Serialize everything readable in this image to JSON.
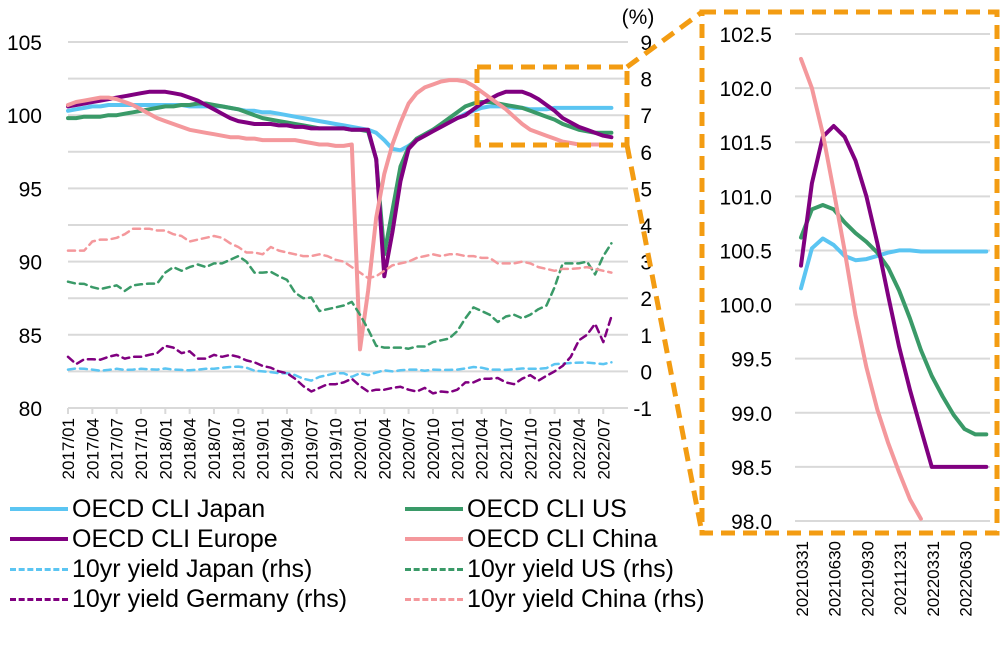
{
  "chart_data": [
    {
      "type": "line",
      "title": "",
      "xlabel": "",
      "ylabel": "",
      "ylabel_right": "(%)",
      "ylim": [
        80,
        105
      ],
      "ylim_right": [
        -1,
        9
      ],
      "grid": true,
      "yticks": [
        "80",
        "85",
        "90",
        "95",
        "100",
        "105"
      ],
      "yticks_right": [
        "-1",
        "0",
        "1",
        "2",
        "3",
        "4",
        "5",
        "6",
        "7",
        "8",
        "9"
      ],
      "x_start": "2017/01",
      "x_end": "2022/08",
      "x_step_months": 1,
      "xticks": [
        "2017/01",
        "2017/04",
        "2017/07",
        "2017/10",
        "2018/01",
        "2018/04",
        "2018/07",
        "2018/10",
        "2019/01",
        "2019/04",
        "2019/07",
        "2019/10",
        "2020/01",
        "2020/04",
        "2020/07",
        "2020/10",
        "2021/01",
        "2021/04",
        "2021/07",
        "2021/10",
        "2022/01",
        "2022/04",
        "2022/07"
      ],
      "series": [
        {
          "name": "OECD CLI Japan",
          "axis": "left",
          "style": "solid",
          "color": "#5BC5F2",
          "values": [
            100.3,
            100.4,
            100.5,
            100.6,
            100.6,
            100.7,
            100.7,
            100.7,
            100.7,
            100.7,
            100.7,
            100.7,
            100.7,
            100.7,
            100.7,
            100.6,
            100.6,
            100.6,
            100.6,
            100.6,
            100.5,
            100.4,
            100.3,
            100.3,
            100.2,
            100.2,
            100.1,
            100.0,
            99.9,
            99.8,
            99.7,
            99.6,
            99.5,
            99.4,
            99.3,
            99.2,
            99.1,
            99.0,
            98.8,
            98.3,
            97.7,
            97.6,
            97.9,
            98.3,
            98.7,
            99.0,
            99.3,
            99.5,
            99.8,
            100.1,
            100.3,
            100.5,
            100.6,
            100.6,
            100.6,
            100.5,
            100.5,
            100.4,
            100.4,
            100.4,
            100.5,
            100.5,
            100.5,
            100.5,
            100.5,
            100.5,
            100.5,
            100.5
          ]
        },
        {
          "name": "OECD CLI US",
          "axis": "left",
          "style": "solid",
          "color": "#3A9A68",
          "values": [
            99.8,
            99.8,
            99.9,
            99.9,
            99.9,
            100.0,
            100.0,
            100.1,
            100.2,
            100.3,
            100.4,
            100.5,
            100.6,
            100.6,
            100.7,
            100.7,
            100.8,
            100.8,
            100.7,
            100.6,
            100.5,
            100.4,
            100.2,
            100.0,
            99.8,
            99.7,
            99.6,
            99.5,
            99.4,
            99.3,
            99.2,
            99.1,
            99.1,
            99.1,
            99.1,
            99.0,
            99.0,
            98.9,
            97.0,
            90.5,
            93.5,
            96.5,
            97.8,
            98.4,
            98.7,
            99.0,
            99.4,
            99.8,
            100.2,
            100.6,
            100.8,
            100.9,
            100.9,
            100.8,
            100.7,
            100.6,
            100.5,
            100.3,
            100.1,
            99.9,
            99.7,
            99.4,
            99.2,
            99.0,
            98.9,
            98.8,
            98.8,
            98.8
          ]
        },
        {
          "name": "OECD CLI Europe",
          "axis": "left",
          "style": "solid",
          "color": "#800080",
          "values": [
            100.6,
            100.7,
            100.8,
            100.9,
            101.0,
            101.1,
            101.2,
            101.3,
            101.4,
            101.5,
            101.6,
            101.6,
            101.6,
            101.5,
            101.4,
            101.2,
            101.0,
            100.7,
            100.4,
            100.1,
            99.8,
            99.6,
            99.5,
            99.4,
            99.4,
            99.4,
            99.3,
            99.3,
            99.2,
            99.2,
            99.1,
            99.1,
            99.1,
            99.1,
            99.1,
            99.0,
            99.0,
            99.0,
            97.0,
            89.0,
            92.0,
            95.5,
            97.7,
            98.3,
            98.6,
            98.9,
            99.2,
            99.5,
            99.8,
            100.0,
            100.4,
            100.8,
            101.1,
            101.4,
            101.6,
            101.6,
            101.6,
            101.4,
            101.1,
            100.7,
            100.3,
            99.8,
            99.5,
            99.2,
            99.0,
            98.8,
            98.6,
            98.5
          ]
        },
        {
          "name": "OECD CLI China",
          "axis": "left",
          "style": "solid",
          "color": "#F4989C",
          "values": [
            100.7,
            100.9,
            101.0,
            101.1,
            101.2,
            101.2,
            101.1,
            100.9,
            100.7,
            100.4,
            100.1,
            99.8,
            99.6,
            99.4,
            99.2,
            99.0,
            98.9,
            98.8,
            98.7,
            98.6,
            98.5,
            98.5,
            98.4,
            98.4,
            98.3,
            98.3,
            98.3,
            98.3,
            98.3,
            98.2,
            98.1,
            98.0,
            98.0,
            97.9,
            97.9,
            98.0,
            84.0,
            88.0,
            93.0,
            96.0,
            98.0,
            99.5,
            100.8,
            101.5,
            101.9,
            102.1,
            102.3,
            102.4,
            102.4,
            102.3,
            102.0,
            101.6,
            101.2,
            100.8,
            100.4,
            99.9,
            99.4,
            99.0,
            98.8,
            98.6,
            98.4,
            98.2,
            98.1,
            98.0,
            98.0,
            98.0,
            98.0,
            98.0
          ]
        },
        {
          "name": "10yr yield Japan (rhs)",
          "axis": "right",
          "style": "dashed",
          "color": "#5BC5F2",
          "values": [
            0.05,
            0.08,
            0.07,
            0.05,
            0.02,
            0.04,
            0.07,
            0.04,
            0.05,
            0.07,
            0.06,
            0.05,
            0.08,
            0.05,
            0.04,
            0.03,
            0.05,
            0.07,
            0.07,
            0.1,
            0.12,
            0.13,
            0.1,
            0.02,
            0.0,
            -0.02,
            -0.05,
            -0.05,
            -0.1,
            -0.2,
            -0.25,
            -0.15,
            -0.1,
            -0.05,
            -0.05,
            -0.15,
            -0.05,
            -0.1,
            -0.03,
            0.03,
            0.0,
            0.03,
            0.05,
            0.05,
            0.02,
            0.05,
            0.04,
            0.04,
            0.05,
            0.08,
            0.12,
            0.1,
            0.05,
            0.05,
            0.04,
            0.06,
            0.08,
            0.07,
            0.07,
            0.09,
            0.2,
            0.21,
            0.23,
            0.24,
            0.24,
            0.22,
            0.2,
            0.25
          ]
        },
        {
          "name": "10yr yield US (rhs)",
          "axis": "right",
          "style": "dashed",
          "color": "#3A9A68",
          "values": [
            2.45,
            2.4,
            2.39,
            2.3,
            2.25,
            2.3,
            2.35,
            2.2,
            2.35,
            2.38,
            2.4,
            2.4,
            2.7,
            2.85,
            2.75,
            2.85,
            2.92,
            2.85,
            2.95,
            2.95,
            3.05,
            3.15,
            3.0,
            2.7,
            2.7,
            2.72,
            2.6,
            2.5,
            2.15,
            2.0,
            2.02,
            1.65,
            1.7,
            1.75,
            1.8,
            1.9,
            1.55,
            1.15,
            0.7,
            0.65,
            0.65,
            0.65,
            0.62,
            0.68,
            0.68,
            0.8,
            0.85,
            0.9,
            1.1,
            1.45,
            1.75,
            1.65,
            1.55,
            1.35,
            1.5,
            1.55,
            1.45,
            1.55,
            1.7,
            1.8,
            2.3,
            2.95,
            2.95,
            2.95,
            3.0,
            2.65,
            3.15,
            3.5
          ]
        },
        {
          "name": "10yr yield Germany (rhs)",
          "axis": "right",
          "style": "dashed",
          "color": "#800080",
          "values": [
            0.4,
            0.2,
            0.33,
            0.33,
            0.32,
            0.4,
            0.45,
            0.35,
            0.4,
            0.4,
            0.45,
            0.5,
            0.7,
            0.65,
            0.5,
            0.55,
            0.35,
            0.35,
            0.45,
            0.4,
            0.45,
            0.4,
            0.3,
            0.25,
            0.15,
            0.1,
            0.0,
            -0.05,
            -0.2,
            -0.4,
            -0.55,
            -0.45,
            -0.35,
            -0.35,
            -0.3,
            -0.2,
            -0.4,
            -0.55,
            -0.5,
            -0.5,
            -0.45,
            -0.42,
            -0.5,
            -0.55,
            -0.45,
            -0.6,
            -0.55,
            -0.57,
            -0.5,
            -0.3,
            -0.3,
            -0.2,
            -0.2,
            -0.18,
            -0.3,
            -0.35,
            -0.2,
            -0.1,
            -0.25,
            -0.12,
            0.0,
            0.15,
            0.4,
            0.85,
            1.0,
            1.3,
            0.8,
            1.5
          ]
        },
        {
          "name": "10yr yield China (rhs)",
          "axis": "right",
          "style": "dashed",
          "color": "#F4989C",
          "values": [
            3.3,
            3.3,
            3.3,
            3.55,
            3.6,
            3.6,
            3.65,
            3.75,
            3.9,
            3.9,
            3.9,
            3.85,
            3.85,
            3.75,
            3.7,
            3.55,
            3.6,
            3.65,
            3.7,
            3.65,
            3.5,
            3.4,
            3.25,
            3.25,
            3.2,
            3.4,
            3.3,
            3.25,
            3.2,
            3.15,
            3.15,
            3.2,
            3.15,
            3.05,
            3.0,
            2.85,
            2.7,
            2.55,
            2.6,
            2.75,
            2.9,
            2.95,
            3.0,
            3.1,
            3.15,
            3.2,
            3.15,
            3.2,
            3.2,
            3.15,
            3.15,
            3.1,
            3.1,
            2.95,
            2.95,
            2.95,
            3.0,
            2.95,
            2.85,
            2.8,
            2.75,
            2.8,
            2.8,
            2.82,
            2.85,
            2.8,
            2.75,
            2.7
          ]
        }
      ],
      "legend": "bottom"
    },
    {
      "type": "line",
      "title": "",
      "xlabel": "",
      "ylabel": "",
      "ylim": [
        98.0,
        102.5
      ],
      "grid": true,
      "yticks": [
        "98.0",
        "98.5",
        "99.0",
        "99.5",
        "100.0",
        "100.5",
        "101.0",
        "101.5",
        "102.0",
        "102.5"
      ],
      "x_start": "20210331",
      "x_end": "20220831",
      "x_step_months": 1,
      "xticks": [
        "20210331",
        "20210630",
        "20210930",
        "20211231",
        "20220331",
        "20220630"
      ],
      "series": [
        {
          "name": "OECD CLI Japan",
          "color": "#5BC5F2",
          "values": [
            100.15,
            100.52,
            100.61,
            100.55,
            100.45,
            100.41,
            100.42,
            100.45,
            100.48,
            100.5,
            100.5,
            100.49,
            100.49,
            100.49,
            100.49,
            100.49,
            100.49,
            100.49
          ]
        },
        {
          "name": "OECD CLI US",
          "color": "#3A9A68",
          "values": [
            100.62,
            100.88,
            100.92,
            100.88,
            100.76,
            100.66,
            100.58,
            100.48,
            100.34,
            100.13,
            99.87,
            99.58,
            99.34,
            99.15,
            98.98,
            98.85,
            98.8,
            98.8
          ]
        },
        {
          "name": "OECD CLI Europe",
          "color": "#800080",
          "values": [
            100.36,
            101.12,
            101.55,
            101.65,
            101.55,
            101.33,
            101.0,
            100.57,
            100.08,
            99.61,
            99.21,
            98.85,
            98.5,
            98.5,
            98.5,
            98.5,
            98.5,
            98.5
          ]
        },
        {
          "name": "OECD CLI China",
          "color": "#F4989C",
          "values": [
            102.27,
            102.0,
            101.58,
            101.05,
            100.5,
            99.9,
            99.42,
            99.03,
            98.72,
            98.45,
            98.2,
            98.02
          ]
        }
      ]
    }
  ],
  "legend_items": [
    {
      "label": "OECD CLI Japan",
      "color": "#5BC5F2",
      "style": "solid"
    },
    {
      "label": "OECD CLI US",
      "color": "#3A9A68",
      "style": "solid"
    },
    {
      "label": "OECD CLI Europe",
      "color": "#800080",
      "style": "solid"
    },
    {
      "label": "OECD CLI China",
      "color": "#F4989C",
      "style": "solid"
    },
    {
      "label": "10yr yield Japan (rhs)",
      "color": "#5BC5F2",
      "style": "dashed"
    },
    {
      "label": "10yr yield US (rhs)",
      "color": "#3A9A68",
      "style": "dashed"
    },
    {
      "label": "10yr yield Germany (rhs)",
      "color": "#800080",
      "style": "dashed"
    },
    {
      "label": "10yr yield China (rhs)",
      "color": "#F4989C",
      "style": "dashed"
    }
  ],
  "highlight_color": "#F39C12",
  "grid_color": "#D9D9D9"
}
